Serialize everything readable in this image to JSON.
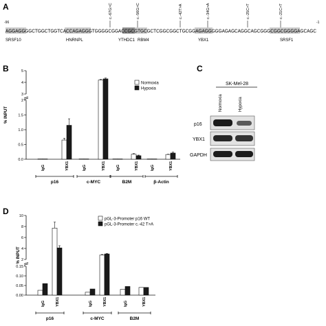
{
  "panels": {
    "a": {
      "letter": "A",
      "pos_start": "-96",
      "pos_end": "-1",
      "sequence": "AGGAGGGGCTGGCTGGTCACCAGAGGGTGGGGCGGACCGCGTGCGCTCGGCGGCTGCGGAGAGGGGGAGAGCAGGCAGCGGGCGGCGGGGAGCAGC",
      "mutations": [
        "c.-67G>C",
        "c.-56G>C",
        "c.-42T>A",
        "c.-34G>A",
        "c.-25C>T",
        "c.-21C>T"
      ],
      "binding_sites": [
        "SRSF10",
        "HNRNPL",
        "YTHDC1",
        "RBM4",
        "YBX1",
        "SRSF1"
      ]
    },
    "b": {
      "letter": "B",
      "ylabel": "% INPUT",
      "legend": [
        "Normoxia",
        "Hypoxia"
      ],
      "yticks": [
        "0.0",
        "0.5",
        "1.0",
        "1.5",
        "2",
        "3",
        "4",
        "5"
      ],
      "group_labels": [
        "p16",
        "c-MYC",
        "B2M",
        "β-Actin"
      ],
      "bar_labels": [
        "IgG",
        "YBX1",
        "IgG",
        "YBX1",
        "IgG",
        "YBX1",
        "IgG",
        "YBX1"
      ]
    },
    "c": {
      "letter": "C",
      "cell_line": "SK-Mel-28",
      "conditions": [
        "Normoxia",
        "Hypoxia"
      ],
      "rows": [
        "p16",
        "YBX1",
        "GAPDH"
      ]
    },
    "d": {
      "letter": "D",
      "ylabel": "% INPUT",
      "legend": [
        "pGL-3-Promoter  p16 WT",
        "pGL-3-Promoter c.-42 T>A"
      ],
      "yticks": [
        "0.00",
        "0.05",
        "0.10",
        "0.15",
        "2",
        "4",
        "6",
        "8",
        "10"
      ],
      "group_labels": [
        "p16",
        "c-MYC",
        "B2M"
      ],
      "bar_labels": [
        "IgG",
        "YBX1",
        "IgG",
        "YBX1",
        "IgG",
        "YBX1"
      ]
    }
  },
  "chart_data": [
    {
      "type": "bar",
      "ylabel": "% INPUT",
      "categories": [
        "p16 IgG",
        "p16 YBX1",
        "c-MYC IgG",
        "c-MYC YBX1",
        "B2M IgG",
        "B2M YBX1",
        "β-Actin IgG",
        "β-Actin YBX1"
      ],
      "series": [
        {
          "name": "Normoxia",
          "values": [
            0.01,
            0.65,
            0.01,
            4.2,
            0.01,
            0.17,
            0.01,
            0.16
          ]
        },
        {
          "name": "Hypoxia",
          "values": [
            0.01,
            1.15,
            0.01,
            4.3,
            0.01,
            0.12,
            0.01,
            0.21
          ]
        }
      ],
      "ylim": [
        0,
        5
      ],
      "axis_break": [
        2,
        3
      ],
      "legend_position": "top-right",
      "colors": [
        "#ffffff",
        "#1a1a1a"
      ]
    },
    {
      "type": "bar",
      "ylabel": "% INPUT",
      "categories": [
        "p16 IgG",
        "p16 YBX1",
        "c-MYC IgG",
        "c-MYC YBX1",
        "B2M IgG",
        "B2M YBX1"
      ],
      "series": [
        {
          "name": "pGL-3-Promoter  p16 WT",
          "values": [
            0.025,
            7.7,
            0.015,
            2.8,
            0.03,
            0.04
          ]
        },
        {
          "name": "pGL-3-Promoter c.-42 T>A",
          "values": [
            0.06,
            4.1,
            0.032,
            3.0,
            0.045,
            0.04
          ]
        }
      ],
      "ylim": [
        0,
        10
      ],
      "axis_break": [
        0.15,
        2
      ],
      "legend_position": "top-right",
      "colors": [
        "#ffffff",
        "#1a1a1a"
      ]
    }
  ]
}
